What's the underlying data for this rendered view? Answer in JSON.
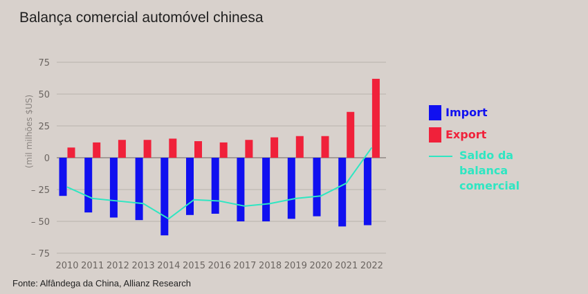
{
  "title": "Balança comercial automóvel chinesa",
  "source": "Fonte: Alfândega da China, Allianz Research",
  "colors": {
    "import": "#1010f0",
    "export": "#f0213a",
    "balance": "#2ee6c2",
    "grid": "#b9b2ad",
    "zero": "#8f8884"
  },
  "legend": {
    "import": "Import",
    "export": "Export",
    "balance": "Saldo da balanca comercial"
  },
  "chart_data": {
    "type": "bar",
    "title": "Balança comercial automóvel chinesa",
    "xlabel": "",
    "ylabel": "(mil milhões $US)",
    "ylim": [
      -75,
      75
    ],
    "yticks": [
      75,
      50,
      25,
      0,
      -25,
      -50,
      -75
    ],
    "ytick_labels": [
      "75",
      "50",
      "25",
      "0",
      "– 25",
      "– 50",
      "– 75"
    ],
    "grid": true,
    "legend_position": "right",
    "categories": [
      "2010",
      "2011",
      "2012",
      "2013",
      "2014",
      "2015",
      "2016",
      "2017",
      "2018",
      "2019",
      "2020",
      "2021",
      "2022"
    ],
    "series": [
      {
        "name": "Import",
        "type": "bar",
        "values": [
          -30,
          -43,
          -47,
          -49,
          -61,
          -45,
          -44,
          -50,
          -50,
          -48,
          -46,
          -54,
          -53
        ]
      },
      {
        "name": "Export",
        "type": "bar",
        "values": [
          8,
          12,
          14,
          14,
          15,
          13,
          12,
          14,
          16,
          17,
          17,
          36,
          62
        ]
      },
      {
        "name": "Saldo da balanca comercial",
        "type": "line",
        "values": [
          -23,
          -32,
          -34,
          -36,
          -48,
          -33,
          -34,
          -38,
          -36,
          -32,
          -30,
          -20,
          8
        ]
      }
    ]
  }
}
